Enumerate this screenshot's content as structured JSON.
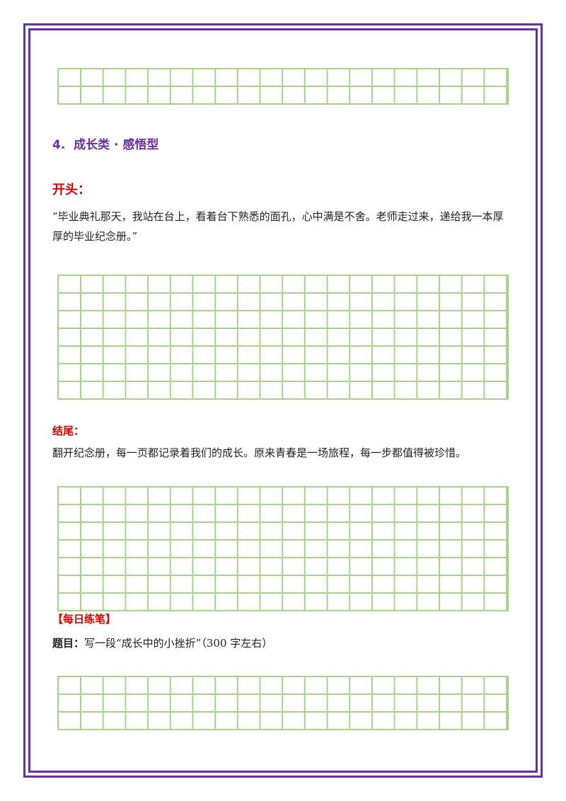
{
  "section": {
    "number": "4.",
    "title": "成长类 · 感悟型"
  },
  "opening": {
    "label": "开头：",
    "text": "“毕业典礼那天，我站在台上，看着台下熟悉的面孔，心中满是不舍。老师走过来，递给我一本厚厚的毕业纪念册。”"
  },
  "ending": {
    "label": "结尾：",
    "text": "翻开纪念册，每一页都记录着我们的成长。原来青春是一场旅程，每一步都值得被珍惜。"
  },
  "daily_practice": {
    "label": "【每日练笔】",
    "prompt_label": "题目：",
    "prompt_text": "写一段“成长中的小挫折”（300 字左右）"
  },
  "colors": {
    "frame": "#6b2fa0",
    "heading": "#6b2fa0",
    "label": "#e00000",
    "grid": "#a8d48a"
  }
}
